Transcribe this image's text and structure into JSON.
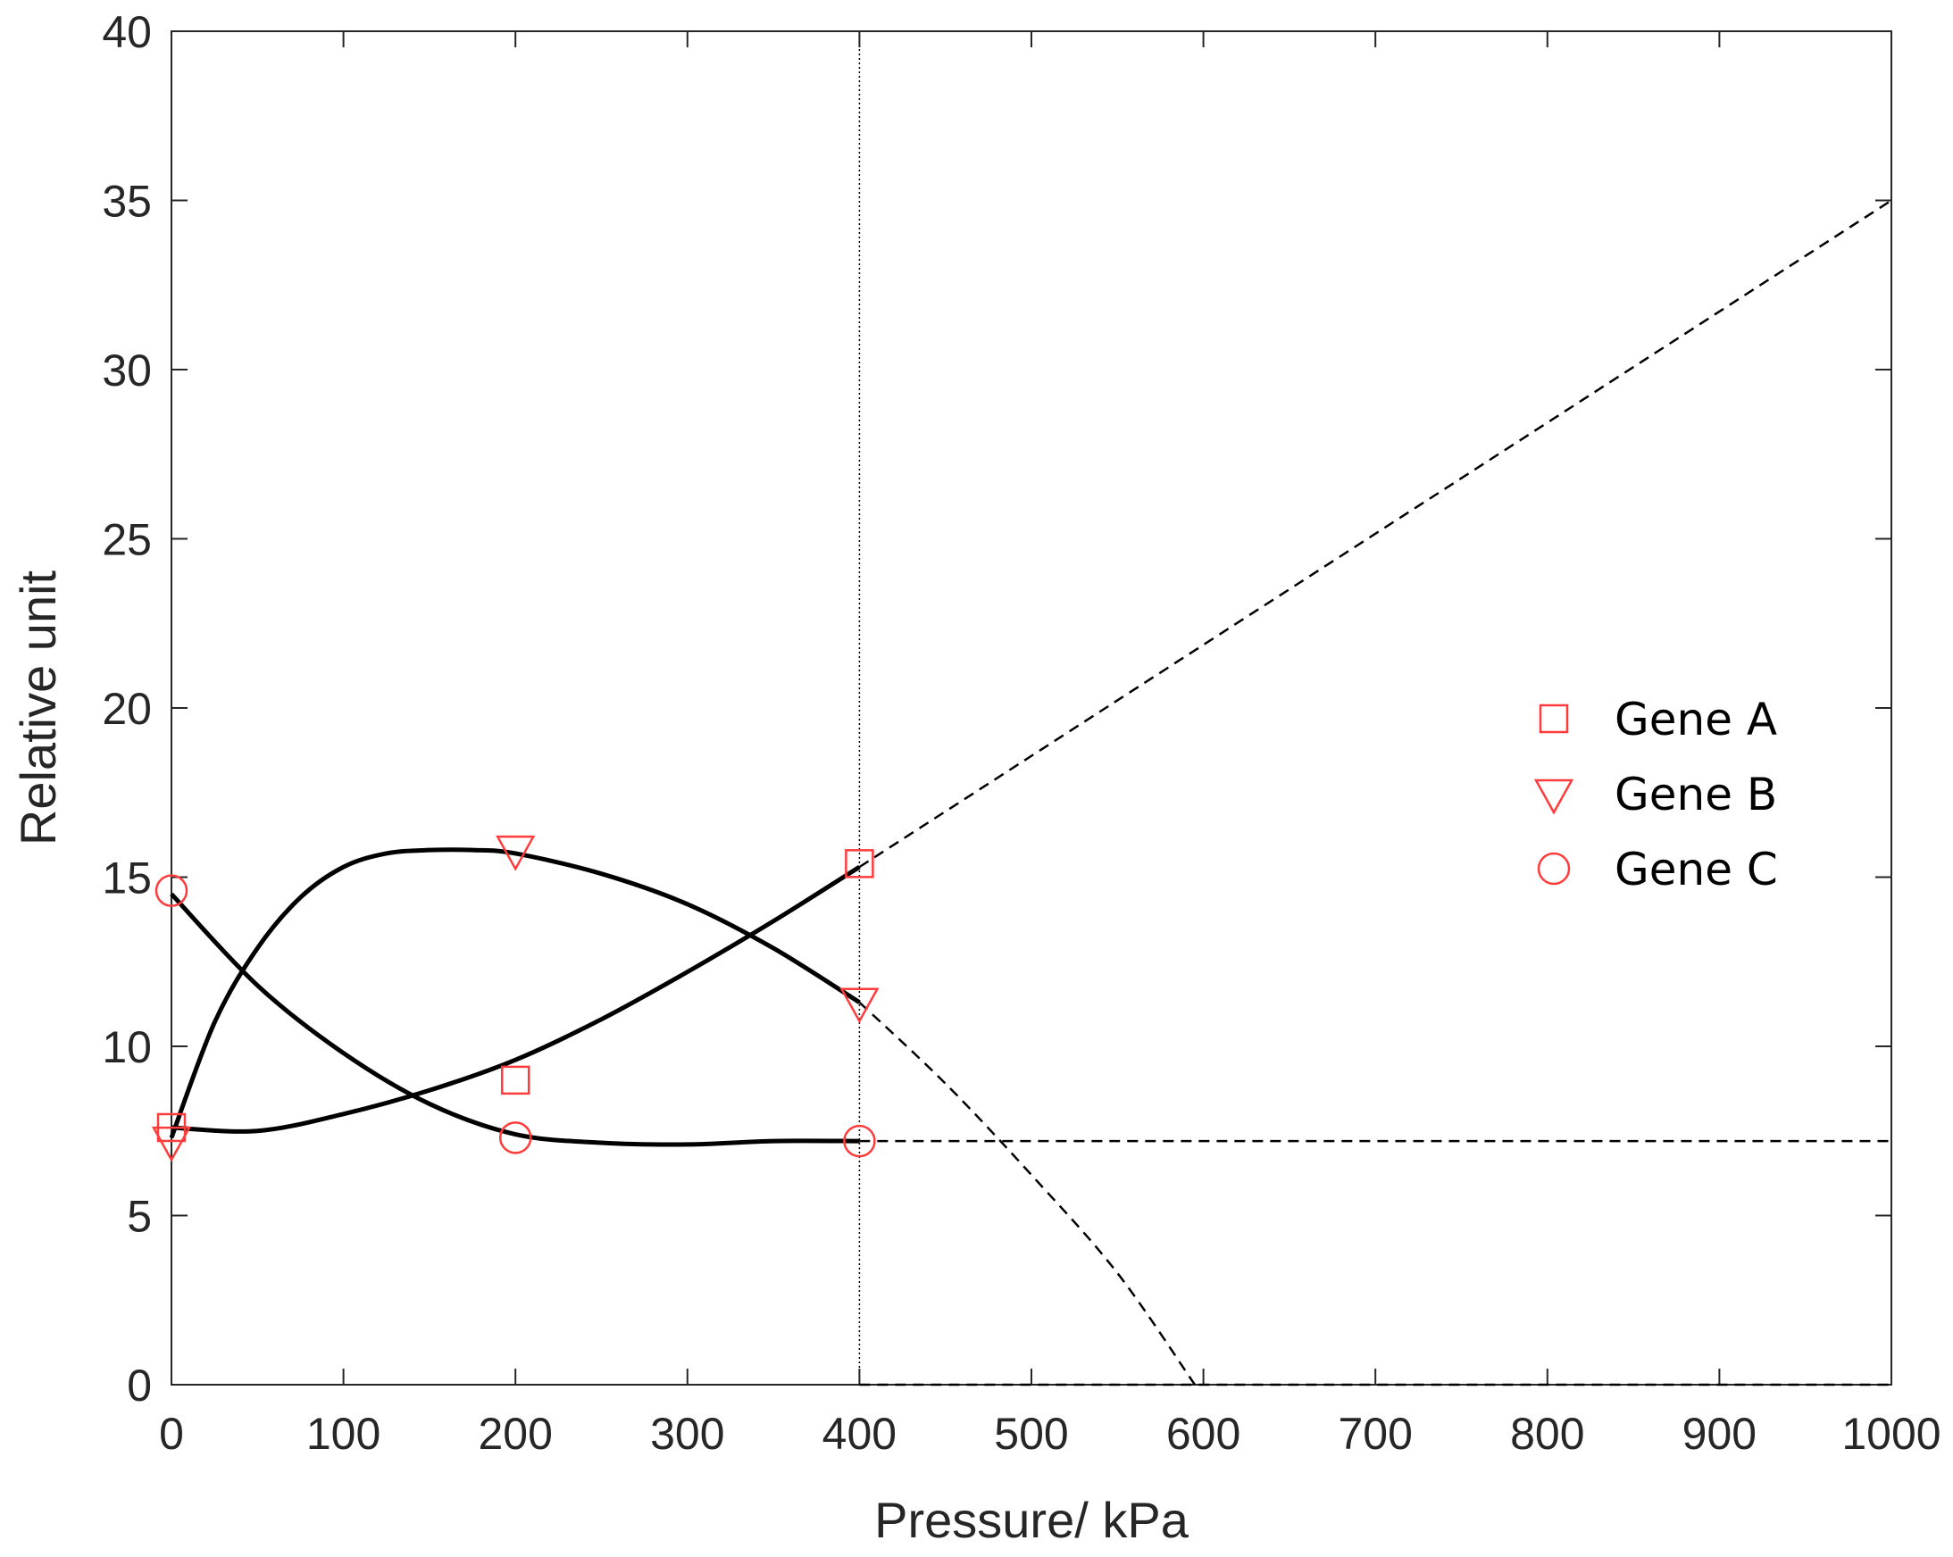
{
  "chart_data": {
    "type": "scatter",
    "title": "",
    "xlabel": "Pressure/ kPa",
    "ylabel": "Relative unit",
    "xlim": [
      0,
      1000
    ],
    "ylim": [
      0,
      40
    ],
    "xticks": [
      0,
      100,
      200,
      300,
      400,
      500,
      600,
      700,
      800,
      900,
      1000
    ],
    "yticks": [
      0,
      5,
      10,
      15,
      20,
      25,
      30,
      35,
      40
    ],
    "grid": false,
    "legend_position": "right",
    "marker_color": "#ff3b3b",
    "line_color": "#000000",
    "vertical_reference_line_x": 400,
    "series": [
      {
        "name": "Gene A",
        "marker": "square",
        "points": [
          [
            0,
            7.6
          ],
          [
            200,
            9.0
          ],
          [
            400,
            15.4
          ]
        ],
        "fit_curve": [
          [
            0,
            7.6
          ],
          [
            50,
            7.5
          ],
          [
            100,
            8.0
          ],
          [
            150,
            8.7
          ],
          [
            200,
            9.6
          ],
          [
            250,
            10.8
          ],
          [
            300,
            12.2
          ],
          [
            350,
            13.7
          ],
          [
            400,
            15.3
          ]
        ],
        "extrapolation": [
          [
            400,
            15.3
          ],
          [
            1000,
            35.0
          ]
        ]
      },
      {
        "name": "Gene B",
        "marker": "triangle-down",
        "points": [
          [
            0,
            7.2
          ],
          [
            200,
            15.8
          ],
          [
            400,
            11.3
          ]
        ],
        "fit_curve": [
          [
            0,
            7.3
          ],
          [
            25,
            10.7
          ],
          [
            50,
            12.9
          ],
          [
            75,
            14.4
          ],
          [
            100,
            15.3
          ],
          [
            125,
            15.7
          ],
          [
            150,
            15.8
          ],
          [
            175,
            15.8
          ],
          [
            200,
            15.7
          ],
          [
            250,
            15.1
          ],
          [
            300,
            14.2
          ],
          [
            350,
            12.9
          ],
          [
            400,
            11.3
          ]
        ],
        "extrapolation": [
          [
            400,
            11.3
          ],
          [
            450,
            8.9
          ],
          [
            500,
            6.2
          ],
          [
            550,
            3.3
          ],
          [
            595,
            0.0
          ]
        ]
      },
      {
        "name": "Gene C",
        "marker": "circle",
        "points": [
          [
            0,
            14.6
          ],
          [
            200,
            7.3
          ],
          [
            400,
            7.2
          ]
        ],
        "fit_curve": [
          [
            0,
            14.5
          ],
          [
            50,
            11.8
          ],
          [
            100,
            9.8
          ],
          [
            150,
            8.3
          ],
          [
            200,
            7.4
          ],
          [
            250,
            7.15
          ],
          [
            300,
            7.1
          ],
          [
            350,
            7.2
          ],
          [
            400,
            7.2
          ]
        ],
        "extrapolation": [
          [
            400,
            7.2
          ],
          [
            1000,
            7.2
          ]
        ]
      }
    ],
    "extra_dashed_lines": [
      [
        [
          400,
          0
        ],
        [
          1000,
          0
        ]
      ]
    ]
  }
}
